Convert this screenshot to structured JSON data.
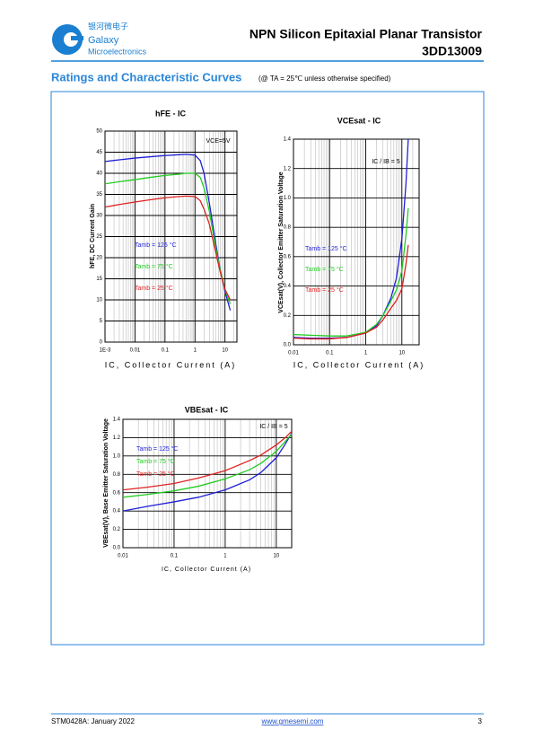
{
  "header": {
    "company_cn": "银河微电子",
    "company": "Galaxy",
    "company_sub": "Microelectronics",
    "title": "NPN Silicon Epitaxial Planar Transistor",
    "part_number": "3DD13009"
  },
  "section": {
    "title": "Ratings and Characteristic Curves",
    "note": "(@ TA = 25℃ unless otherwise specified)"
  },
  "chart_data": [
    {
      "type": "line",
      "title": "hFE - IC",
      "x_label": "IC, Collector Current (A)",
      "y_label": "hFE, DC Current Gain",
      "annotation": "VCE=5V",
      "log_x": true,
      "grid": true,
      "legend": "center left",
      "xlim": [
        0.001,
        25
      ],
      "ylim": [
        0,
        50
      ],
      "xticks": [
        {
          "value": 0.001,
          "label": "1E-3"
        },
        0.01,
        0.1,
        1,
        10
      ],
      "yticks": [
        0,
        5,
        10,
        15,
        20,
        25,
        30,
        35,
        40,
        45,
        50
      ],
      "x": [
        0.001,
        0.003,
        0.01,
        0.03,
        0.1,
        0.3,
        0.5,
        1,
        1.5,
        2,
        3,
        5,
        7,
        10,
        15
      ],
      "series": [
        {
          "name": "Tamb = 125 °C",
          "color": "#1f1fd6",
          "values": [
            42.8,
            43.2,
            43.6,
            43.9,
            44.2,
            44.4,
            44.5,
            44.3,
            43,
            40,
            33,
            23,
            17,
            12,
            7.5
          ]
        },
        {
          "name": "Tamb = 75 °C",
          "color": "#22cc22",
          "values": [
            37.5,
            38,
            38.5,
            39,
            39.5,
            39.8,
            40,
            40,
            39,
            36.5,
            31,
            22,
            17,
            12.5,
            9
          ]
        },
        {
          "name": "Tamb = 25 °C",
          "color": "#dd2222",
          "values": [
            32,
            32.6,
            33.2,
            33.7,
            34.2,
            34.5,
            34.6,
            34.5,
            33.5,
            31.5,
            28,
            21,
            16.5,
            12.5,
            10
          ]
        }
      ]
    },
    {
      "type": "line",
      "title": "VCEsat - IC",
      "x_label": "IC, Collector Current (A)",
      "y_label": "VCEsat(V), Collector Emitter Saturation Voltage",
      "annotation": "IC / IB = 5",
      "log_x": true,
      "grid": true,
      "legend": "center left",
      "xlim": [
        0.01,
        30
      ],
      "ylim": [
        0,
        1.4
      ],
      "xticks": [
        0.01,
        0.1,
        1,
        10
      ],
      "yticks": [
        {
          "value": 0,
          "label": "0.0"
        },
        0.2,
        0.4,
        0.6,
        0.8,
        {
          "value": 1,
          "label": "1.0"
        },
        1.2,
        1.4
      ],
      "x": [
        0.01,
        0.03,
        0.1,
        0.3,
        1,
        2,
        3,
        5,
        7,
        10,
        13,
        15
      ],
      "series": [
        {
          "name": "Tamb = 125 °C",
          "color": "#1f1fd6",
          "values": [
            0.05,
            0.045,
            0.045,
            0.05,
            0.08,
            0.13,
            0.2,
            0.32,
            0.45,
            0.72,
            1.1,
            1.4
          ]
        },
        {
          "name": "Tamb = 75 °C",
          "color": "#22cc22",
          "values": [
            0.07,
            0.065,
            0.06,
            0.06,
            0.085,
            0.14,
            0.2,
            0.3,
            0.37,
            0.5,
            0.75,
            0.93
          ]
        },
        {
          "name": "Tamb = 25 °C",
          "color": "#dd2222",
          "values": [
            0.045,
            0.04,
            0.04,
            0.05,
            0.08,
            0.12,
            0.17,
            0.25,
            0.3,
            0.38,
            0.55,
            0.68
          ]
        }
      ]
    },
    {
      "type": "line",
      "title": "VBEsat - IC",
      "x_label": "IC, Collector Current (A)",
      "y_label": "VBEsat(V), Base Emitter Saturation Voltage",
      "annotation": "IC / IB = 5",
      "log_x": true,
      "grid": true,
      "legend": "upper left",
      "xlim": [
        0.01,
        20
      ],
      "ylim": [
        0,
        1.4
      ],
      "xticks": [
        0.01,
        0.1,
        1,
        10
      ],
      "yticks": [
        {
          "value": 0,
          "label": "0.0"
        },
        0.2,
        0.4,
        0.6,
        0.8,
        {
          "value": 1,
          "label": "1.0"
        },
        1.2,
        1.4
      ],
      "x": [
        0.01,
        0.03,
        0.1,
        0.3,
        1,
        3,
        5,
        10,
        15,
        20
      ],
      "series": [
        {
          "name": "Tamb = 125 °C",
          "color": "#1f1fd6",
          "values": [
            0.4,
            0.45,
            0.5,
            0.55,
            0.63,
            0.74,
            0.82,
            0.98,
            1.13,
            1.25
          ]
        },
        {
          "name": "Tamb = 75 °C",
          "color": "#22cc22",
          "values": [
            0.55,
            0.58,
            0.62,
            0.67,
            0.75,
            0.85,
            0.92,
            1.05,
            1.16,
            1.24
          ]
        },
        {
          "name": "Tamb = 25 °C",
          "color": "#dd2222",
          "values": [
            0.63,
            0.66,
            0.7,
            0.76,
            0.84,
            0.95,
            1.01,
            1.12,
            1.2,
            1.27
          ]
        }
      ]
    }
  ],
  "footer": {
    "doc": "STM0428A: January 2022",
    "url": "www.gmesemi.com",
    "page": "3"
  }
}
